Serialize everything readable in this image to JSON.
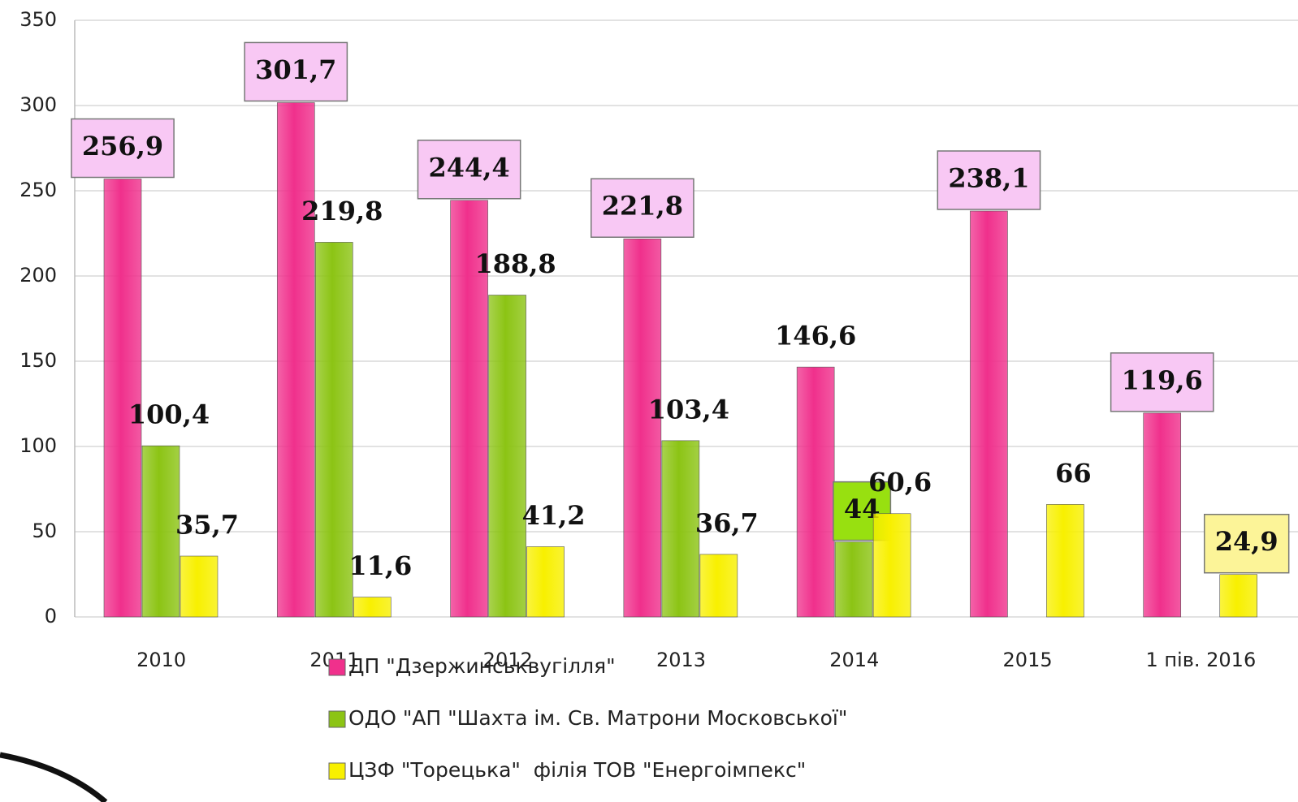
{
  "chart_data": {
    "type": "bar",
    "categories": [
      "2010",
      "2011",
      "2012",
      "2013",
      "2014",
      "2015",
      "1 пів. 2016"
    ],
    "series": [
      {
        "name": "ДП \"Дзержинськвугілля\"",
        "color": "#f0308c",
        "values": [
          256.9,
          301.7,
          244.4,
          221.8,
          146.6,
          238.1,
          119.6
        ],
        "value_labels": [
          "256,9",
          "301,7",
          "244,4",
          "221,8",
          "146,6",
          "238,1",
          "119,6"
        ],
        "label_box": [
          true,
          true,
          true,
          true,
          false,
          true,
          true
        ],
        "box_color": "#f8c8f4"
      },
      {
        "name": "ОДО \"АП \"Шахта ім. Св. Матрони Московської\"",
        "color": "#8cc414",
        "values": [
          100.4,
          219.8,
          188.8,
          103.4,
          44,
          null,
          null
        ],
        "value_labels": [
          "100,4",
          "219,8",
          "188,8",
          "103,4",
          "44",
          null,
          null
        ],
        "label_box": [
          false,
          false,
          false,
          false,
          true,
          false,
          false
        ],
        "box_color": "#98e010"
      },
      {
        "name": "ЦЗФ \"Торецька\"  філія ТОВ \"Енергоімпекс\"",
        "color": "#f8f000",
        "values": [
          35.7,
          11.6,
          41.2,
          36.7,
          60.6,
          66,
          24.9
        ],
        "value_labels": [
          "35,7",
          "11,6",
          "41,2",
          "36,7",
          "60,6",
          "66",
          "24,9"
        ],
        "label_box": [
          false,
          false,
          false,
          false,
          false,
          false,
          true
        ],
        "box_color": "#fcf498"
      }
    ],
    "ylim": [
      0,
      350
    ],
    "yticks": [
      0,
      50,
      100,
      150,
      200,
      250,
      300,
      350
    ],
    "grid": true,
    "legend": "bottom"
  }
}
